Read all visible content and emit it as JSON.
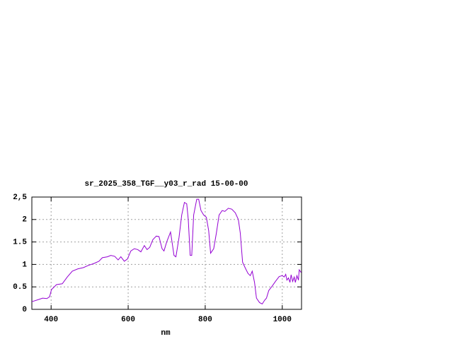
{
  "chart_data": {
    "type": "line",
    "title": "sr_2025_358_TGF__y03_r_rad 15-00-00",
    "x_label": "nm",
    "x": [
      350,
      368,
      378,
      389,
      396,
      401,
      414,
      429,
      442,
      455,
      469,
      484,
      497,
      511,
      524,
      533,
      546,
      555,
      565,
      574,
      581,
      590,
      598,
      607,
      616,
      625,
      633,
      642,
      649,
      656,
      664,
      673,
      680,
      688,
      693,
      700,
      710,
      713,
      719,
      724,
      732,
      739,
      746,
      752,
      756,
      761,
      765,
      770,
      778,
      783,
      789,
      796,
      803,
      809,
      814,
      822,
      829,
      836,
      844,
      851,
      860,
      869,
      878,
      886,
      891,
      897,
      904,
      911,
      917,
      922,
      928,
      933,
      941,
      948,
      954,
      959,
      965,
      974,
      983,
      992,
      1000,
      1005,
      1009,
      1012,
      1016,
      1020,
      1023,
      1027,
      1031,
      1034,
      1038,
      1042,
      1044,
      1049
    ],
    "series": [
      {
        "color": "#9400d3",
        "values": [
          0.17,
          0.22,
          0.25,
          0.24,
          0.28,
          0.44,
          0.55,
          0.57,
          0.72,
          0.85,
          0.9,
          0.93,
          0.98,
          1.02,
          1.07,
          1.15,
          1.17,
          1.2,
          1.18,
          1.1,
          1.17,
          1.07,
          1.12,
          1.3,
          1.35,
          1.33,
          1.28,
          1.42,
          1.33,
          1.38,
          1.55,
          1.63,
          1.62,
          1.35,
          1.3,
          1.5,
          1.72,
          1.55,
          1.2,
          1.17,
          1.6,
          2.1,
          2.38,
          2.35,
          2.0,
          1.2,
          1.2,
          2.1,
          2.45,
          2.45,
          2.2,
          2.1,
          2.05,
          1.75,
          1.25,
          1.35,
          1.7,
          2.1,
          2.2,
          2.18,
          2.25,
          2.23,
          2.15,
          2.0,
          1.7,
          1.05,
          0.92,
          0.8,
          0.75,
          0.85,
          0.6,
          0.25,
          0.15,
          0.12,
          0.2,
          0.25,
          0.42,
          0.52,
          0.63,
          0.73,
          0.75,
          0.72,
          0.78,
          0.65,
          0.7,
          0.6,
          0.77,
          0.62,
          0.72,
          0.6,
          0.75,
          0.65,
          0.88,
          0.82
        ]
      }
    ],
    "xlim": [
      350,
      1050
    ],
    "xticks": [
      400,
      600,
      800,
      1000
    ],
    "ylim": [
      0,
      2.5
    ],
    "yticks": [
      0,
      0.5,
      1,
      1.5,
      2,
      {
        "value": 2.5,
        "label": "2,5"
      }
    ],
    "grid": true
  }
}
